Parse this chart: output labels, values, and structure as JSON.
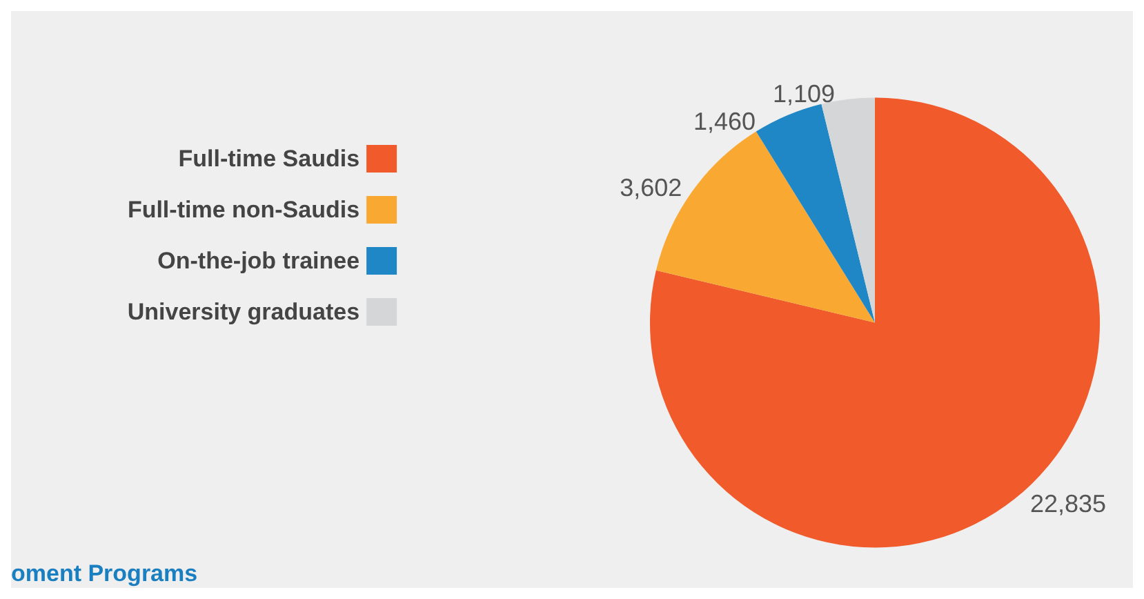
{
  "chart_data": {
    "type": "pie",
    "categories": [
      "Full-time Saudis",
      "Full-time non-Saudis",
      "On-the-job trainee",
      "University graduates"
    ],
    "values": [
      22835,
      3602,
      1460,
      1109
    ],
    "value_labels": [
      "22,835",
      "3,602",
      "1,460",
      "1,109"
    ],
    "colors": [
      "#f15a2b",
      "#f9a932",
      "#1f87c6",
      "#d5d6d8"
    ],
    "legend": "left",
    "annotations": [
      "oment Programs"
    ]
  }
}
